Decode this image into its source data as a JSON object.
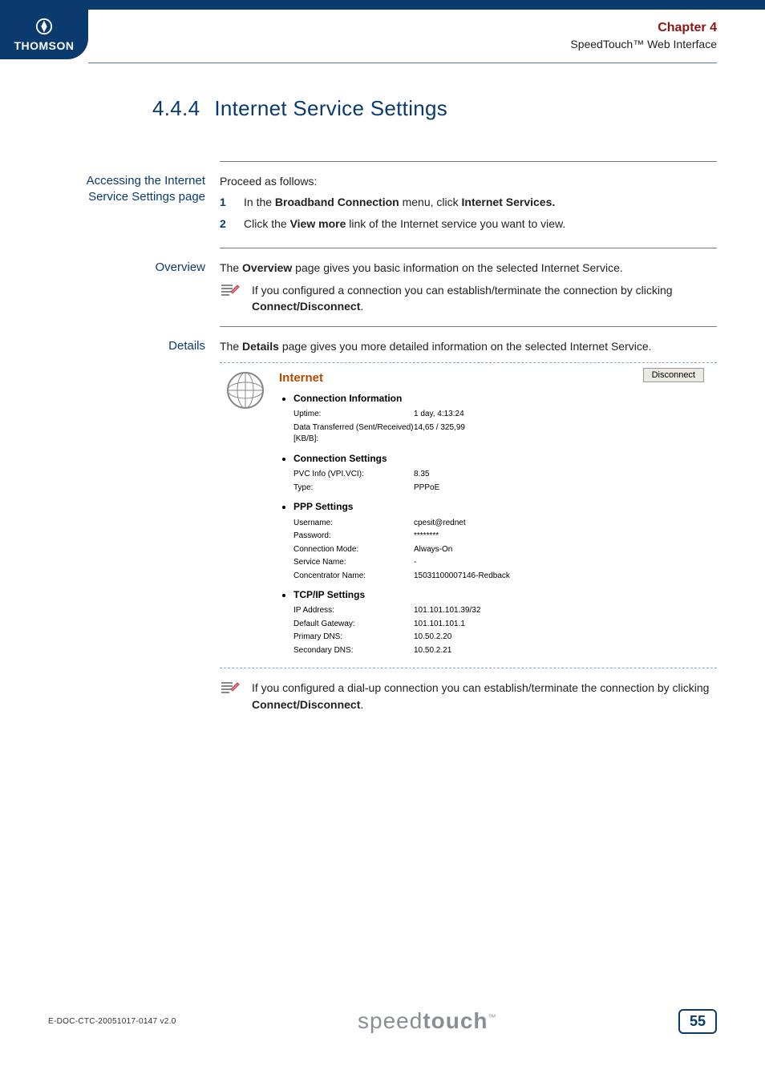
{
  "header": {
    "brand": "THOMSON",
    "chapter": "Chapter 4",
    "subtitle": "SpeedTouch™ Web Interface"
  },
  "title": {
    "number": "4.4.4",
    "text": "Internet Service Settings"
  },
  "sections": {
    "accessing": {
      "label": "Accessing the Internet Service Settings page",
      "intro": "Proceed as follows:",
      "steps": [
        {
          "pre": "In the ",
          "b1": "Broadband Connection",
          "mid": " menu, click ",
          "b2": "Internet Services.",
          "post": ""
        },
        {
          "pre": "Click the ",
          "b1": "View more",
          "mid": " link of the Internet service you want to view.",
          "b2": "",
          "post": ""
        }
      ]
    },
    "overview": {
      "label": "Overview",
      "line_pre": "The ",
      "line_b": "Overview",
      "line_post": " page gives you basic information on the selected Internet Service.",
      "note_pre": "If you configured a connection you can establish/terminate the connection by clicking ",
      "note_b": "Connect/Disconnect",
      "note_post": "."
    },
    "details": {
      "label": "Details",
      "line_pre": "The ",
      "line_b": "Details",
      "line_post": " page gives you more detailed information on the selected Internet Service.",
      "panel": {
        "title": "Internet",
        "button": "Disconnect",
        "groups": [
          {
            "title": "Connection Information",
            "rows": [
              {
                "k": "Uptime:",
                "v": "1 day, 4:13:24"
              },
              {
                "k": "Data Transferred (Sent/Received) [KB/B]:",
                "v": "14,65 / 325,99"
              }
            ]
          },
          {
            "title": "Connection Settings",
            "rows": [
              {
                "k": "PVC Info (VPI.VCI):",
                "v": "8.35"
              },
              {
                "k": "Type:",
                "v": "PPPoE"
              }
            ]
          },
          {
            "title": "PPP Settings",
            "rows": [
              {
                "k": "Username:",
                "v": "cpesit@rednet"
              },
              {
                "k": "Password:",
                "v": "********"
              },
              {
                "k": "Connection Mode:",
                "v": "Always-On"
              },
              {
                "k": "Service Name:",
                "v": "-"
              },
              {
                "k": "Concentrator Name:",
                "v": "15031100007146-Redback"
              }
            ]
          },
          {
            "title": "TCP/IP Settings",
            "rows": [
              {
                "k": "IP Address:",
                "v": "101.101.101.39/32"
              },
              {
                "k": "Default Gateway:",
                "v": "101.101.101.1"
              },
              {
                "k": "Primary DNS:",
                "v": "10.50.2.20"
              },
              {
                "k": "Secondary DNS:",
                "v": "10.50.2.21"
              }
            ]
          }
        ]
      },
      "note_pre": "If you configured a dial-up connection you can establish/terminate the connection by clicking ",
      "note_b": "Connect/Disconnect",
      "note_post": "."
    }
  },
  "footer": {
    "doc_code": "E-DOC-CTC-20051017-0147 v2.0",
    "logo_a": "speed",
    "logo_b": "touch",
    "tm": "™",
    "page": "55"
  },
  "colors": {
    "navy": "#0b3a6f",
    "maroon": "#8a1414",
    "orange": "#b24a00",
    "dash": "#8aa8c8",
    "footer_gray": "#8a8f97"
  }
}
